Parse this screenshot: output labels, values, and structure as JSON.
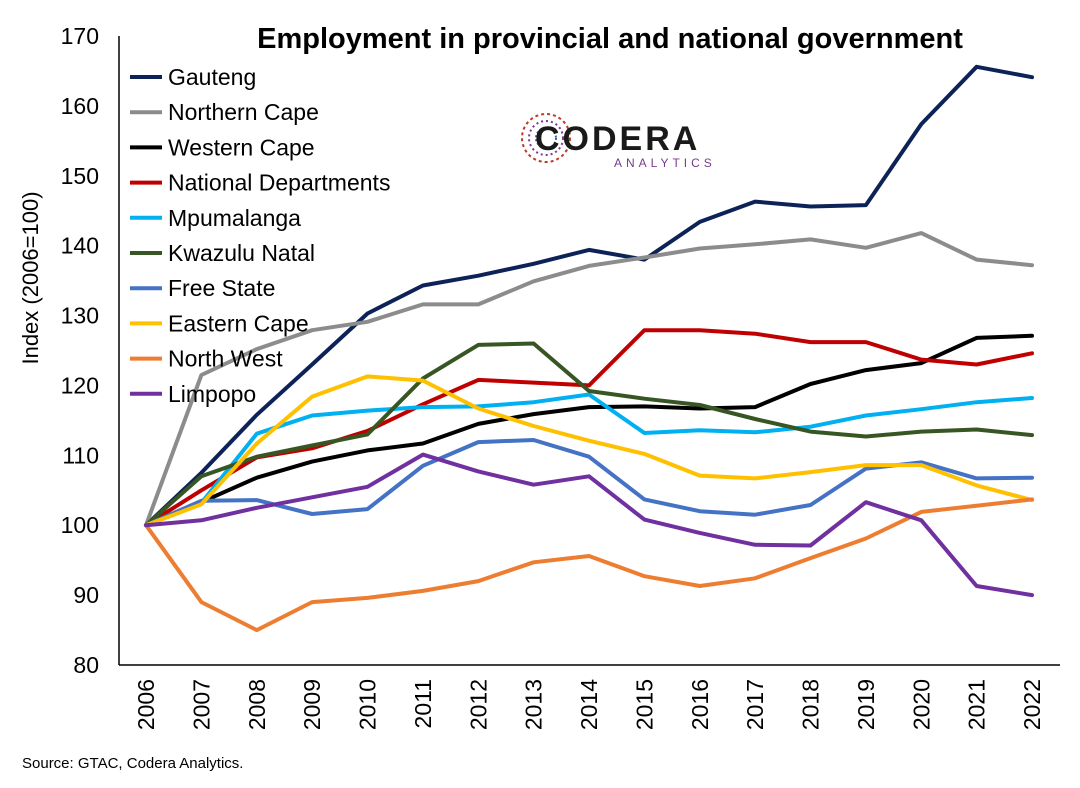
{
  "chart_data": {
    "type": "line",
    "title": "Employment in provincial and national government",
    "ylabel": "Index (2006=100)",
    "xlabel": "",
    "ylim": [
      80,
      170
    ],
    "yticks": [
      80,
      90,
      100,
      110,
      120,
      130,
      140,
      150,
      160,
      170
    ],
    "x": [
      "2006",
      "2007",
      "2008",
      "2009",
      "2010",
      "2011",
      "2012",
      "2013",
      "2014",
      "2015",
      "2016",
      "2017",
      "2018",
      "2019",
      "2020",
      "2021",
      "2022"
    ],
    "grid": false,
    "legend_position": "top-left",
    "series": [
      {
        "name": "Gauteng",
        "color": "#0d2358",
        "values": [
          100,
          107.5,
          115.8,
          123.0,
          130.3,
          134.3,
          135.7,
          137.4,
          139.4,
          138.0,
          143.4,
          146.3,
          145.6,
          145.8,
          157.4,
          165.6,
          164.1
        ]
      },
      {
        "name": "Northern Cape",
        "color": "#8c8c8c",
        "values": [
          100,
          121.5,
          125.2,
          127.9,
          129.1,
          131.6,
          131.6,
          134.9,
          137.1,
          138.3,
          139.6,
          140.2,
          140.9,
          139.7,
          141.8,
          138.0,
          137.2
        ]
      },
      {
        "name": "Western Cape",
        "color": "#000000",
        "values": [
          100,
          103.3,
          106.8,
          109.1,
          110.7,
          111.7,
          114.5,
          115.9,
          116.9,
          117.0,
          116.7,
          116.9,
          120.2,
          122.2,
          123.2,
          126.8,
          127.1
        ]
      },
      {
        "name": "National Departments",
        "color": "#c00000",
        "values": [
          100,
          105.0,
          109.7,
          111.0,
          113.5,
          117.3,
          120.8,
          120.4,
          120.0,
          127.9,
          127.9,
          127.4,
          126.2,
          126.2,
          123.7,
          123.0,
          124.6
        ]
      },
      {
        "name": "Mpumalanga",
        "color": "#00b0f0",
        "values": [
          100,
          103.2,
          113.1,
          115.7,
          116.4,
          116.9,
          117.0,
          117.6,
          118.7,
          113.2,
          113.6,
          113.3,
          114.1,
          115.7,
          116.6,
          117.6,
          118.2
        ]
      },
      {
        "name": "Kwazulu Natal",
        "color": "#375623",
        "values": [
          100,
          107.0,
          109.8,
          111.4,
          113.0,
          121.0,
          125.8,
          126.0,
          119.2,
          118.1,
          117.2,
          115.2,
          113.4,
          112.7,
          113.4,
          113.7,
          112.9
        ]
      },
      {
        "name": "Free State",
        "color": "#4472c4",
        "values": [
          100,
          103.5,
          103.6,
          101.6,
          102.3,
          108.5,
          111.9,
          112.2,
          109.8,
          103.7,
          102.0,
          101.5,
          102.9,
          108.1,
          109.0,
          106.7,
          106.8
        ]
      },
      {
        "name": "Eastern Cape",
        "color": "#ffc000",
        "values": [
          100,
          103.0,
          111.7,
          118.4,
          121.3,
          120.7,
          116.7,
          114.2,
          112.1,
          110.2,
          107.1,
          106.7,
          107.6,
          108.6,
          108.6,
          105.7,
          103.6
        ]
      },
      {
        "name": "North West",
        "color": "#ed7d31",
        "values": [
          100,
          89.0,
          85.0,
          89.0,
          89.6,
          90.6,
          92.0,
          94.7,
          95.6,
          92.7,
          91.3,
          92.4,
          95.3,
          98.1,
          101.9,
          102.8,
          103.7
        ]
      },
      {
        "name": "Limpopo",
        "color": "#7030a0",
        "values": [
          100,
          100.7,
          102.5,
          104.0,
          105.5,
          110.1,
          107.7,
          105.8,
          107.0,
          100.8,
          98.9,
          97.2,
          97.1,
          103.3,
          100.7,
          91.3,
          90.0
        ]
      }
    ]
  },
  "logo": {
    "word": "CODERA",
    "sub": "ANALYTICS"
  },
  "source": "Source: GTAC, Codera Analytics."
}
